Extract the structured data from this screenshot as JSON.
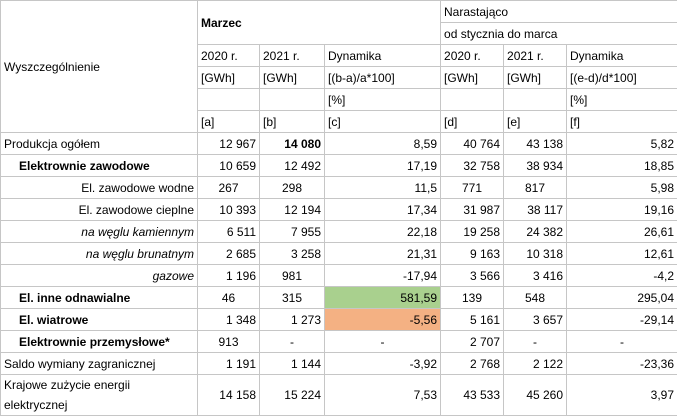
{
  "header": {
    "row_label": "Wyszczególnienie",
    "month_group": "Marzec",
    "cumulative_group_line1": "Narastająco",
    "cumulative_group_line2": "od stycznia do marca",
    "col_2020": "2020 r.",
    "col_2021": "2021 r.",
    "col_dyn": "Dynamika",
    "unit": "[GWh]",
    "dyn_formula_month": "[(b-a)/a*100]",
    "dyn_formula_cum": "[(e-d)/d*100]",
    "pct": "[%]",
    "letters": [
      "[a]",
      "[b]",
      "[c]",
      "[d]",
      "[e]",
      "[f]"
    ]
  },
  "rows": [
    {
      "label": "Produkcja ogółem",
      "a": "12 967",
      "b": "14 080",
      "c": "8,59",
      "d": "40 764",
      "e": "43 138",
      "f": "5,82"
    },
    {
      "label": "Elektrownie zawodowe",
      "a": "10 659",
      "b": "12 492",
      "c": "17,19",
      "d": "32 758",
      "e": "38 934",
      "f": "18,85"
    },
    {
      "label": "El. zawodowe wodne",
      "a": "267",
      "b": "298",
      "c": "11,5",
      "d": "771",
      "e": "817",
      "f": "5,98"
    },
    {
      "label": "El. zawodowe cieplne",
      "a": "10 393",
      "b": "12 194",
      "c": "17,34",
      "d": "31 987",
      "e": "38 117",
      "f": "19,16"
    },
    {
      "label": "na węglu kamiennym",
      "a": "6 511",
      "b": "7 955",
      "c": "22,18",
      "d": "19 258",
      "e": "24 382",
      "f": "26,61"
    },
    {
      "label": "na węglu brunatnym",
      "a": "2 685",
      "b": "3 258",
      "c": "21,31",
      "d": "9 163",
      "e": "10 318",
      "f": "12,61"
    },
    {
      "label": "gazowe",
      "a": "1 196",
      "b": "981",
      "c": "-17,94",
      "d": "3 566",
      "e": "3 416",
      "f": "-4,2"
    },
    {
      "label": "El. inne odnawialne",
      "a": "46",
      "b": "315",
      "c": "581,59",
      "d": "139",
      "e": "548",
      "f": "295,04"
    },
    {
      "label": "El. wiatrowe",
      "a": "1 348",
      "b": "1 273",
      "c": "-5,56",
      "d": "5 161",
      "e": "3 657",
      "f": "-29,14"
    },
    {
      "label": "Elektrownie przemysłowe*",
      "a": "913",
      "b": "-",
      "c": "-",
      "d": "2 707",
      "e": "-",
      "f": "-"
    },
    {
      "label": "Saldo wymiany zagranicznej",
      "a": "1 191",
      "b": "1 144",
      "c": "-3,92",
      "d": "2 768",
      "e": "2 122",
      "f": "-23,36"
    },
    {
      "label": "Krajowe zużycie energii elektrycznej",
      "a": "14 158",
      "b": "15 224",
      "c": "7,53",
      "d": "43 533",
      "e": "45 260",
      "f": "3,97"
    }
  ],
  "colors": {
    "highlight_positive": "#a9d08e",
    "highlight_negative": "#f4b183",
    "grid": "#c6c6c6"
  }
}
